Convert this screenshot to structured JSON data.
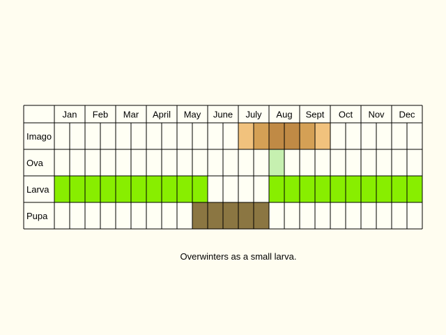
{
  "caption": "Overwinters as a small larva.",
  "chart_data": {
    "type": "table",
    "months": [
      "Jan",
      "Feb",
      "Mar",
      "April",
      "May",
      "June",
      "July",
      "Aug",
      "Sept",
      "Oct",
      "Nov",
      "Dec"
    ],
    "half_month_columns": 24,
    "rows": [
      {
        "label": "Imago",
        "spans": [
          {
            "from": 12,
            "to": 13,
            "color": "#f1c27d"
          },
          {
            "from": 13,
            "to": 14,
            "color": "#d4a055"
          },
          {
            "from": 14,
            "to": 15,
            "color": "#c08a45"
          },
          {
            "from": 15,
            "to": 16,
            "color": "#c08a45"
          },
          {
            "from": 16,
            "to": 17,
            "color": "#d4a055"
          },
          {
            "from": 17,
            "to": 18,
            "color": "#f1c27d"
          }
        ]
      },
      {
        "label": "Ova",
        "spans": [
          {
            "from": 14,
            "to": 15,
            "color": "#c6f0b0"
          }
        ]
      },
      {
        "label": "Larva",
        "spans": [
          {
            "from": 0,
            "to": 10,
            "color": "#88ee00"
          },
          {
            "from": 14,
            "to": 24,
            "color": "#88ee00"
          }
        ]
      },
      {
        "label": "Pupa",
        "spans": [
          {
            "from": 9,
            "to": 14,
            "color": "#8b7642"
          }
        ]
      }
    ]
  }
}
